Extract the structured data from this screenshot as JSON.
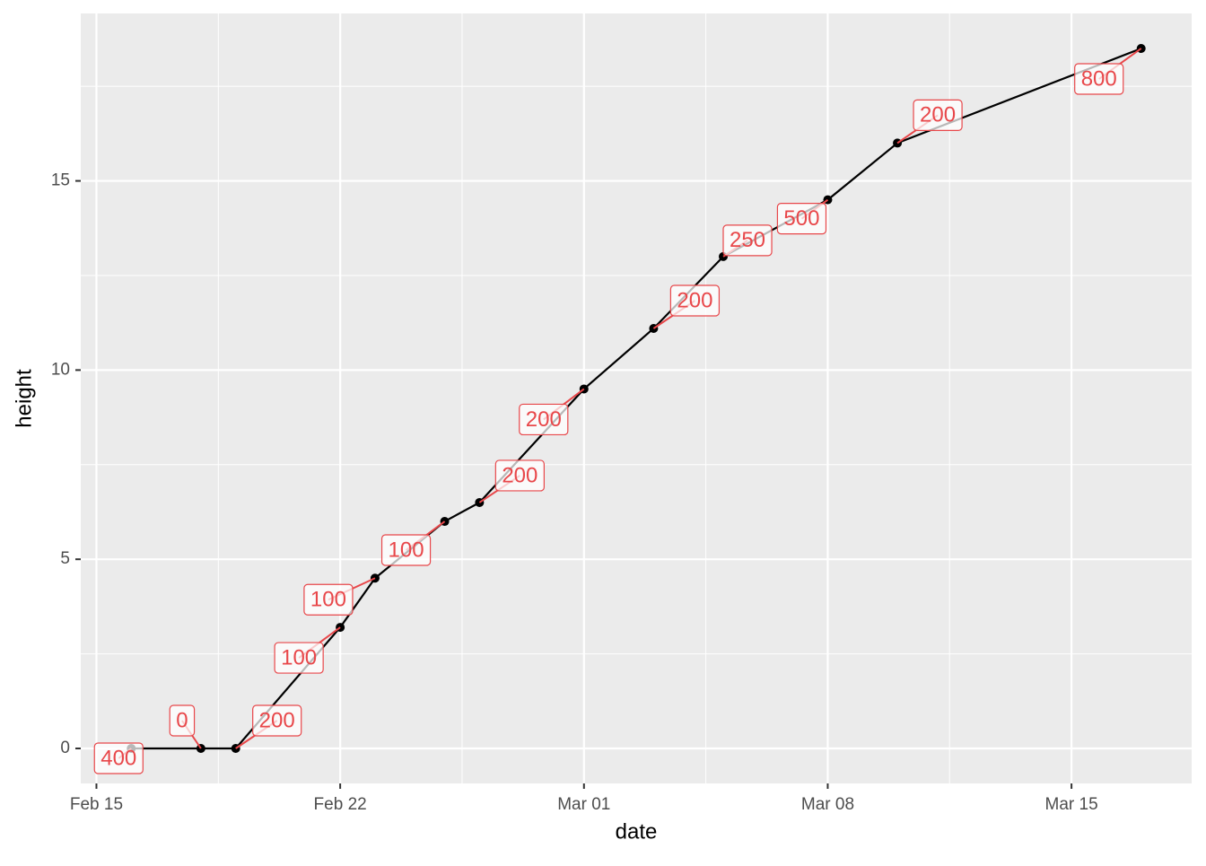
{
  "chart_data": {
    "type": "line",
    "x_label": "date",
    "y_label": "height",
    "x": [
      "Feb 16",
      "Feb 18",
      "Feb 19",
      "Feb 22",
      "Feb 23",
      "Feb 25",
      "Feb 26",
      "Mar 01",
      "Mar 03",
      "Mar 05",
      "Mar 08",
      "Mar 10",
      "Mar 17"
    ],
    "series": [
      {
        "name": "height",
        "color": "#000000",
        "values": [
          0,
          0,
          0,
          3.2,
          4.5,
          6.0,
          6.5,
          9.5,
          11.1,
          13.0,
          14.5,
          16.0,
          18.5
        ]
      }
    ],
    "point_labels": [
      400,
      0,
      200,
      100,
      100,
      100,
      200,
      200,
      200,
      250,
      500,
      200,
      800
    ],
    "label_color": "#E8474A",
    "xlim": [
      "Feb 16",
      "Mar 17"
    ],
    "xticks": [
      "Feb 15",
      "Feb 22",
      "Mar 01",
      "Mar 08",
      "Mar 15"
    ],
    "ylim": [
      -0.925,
      19.425
    ],
    "yticks": [
      0,
      5,
      10,
      15
    ],
    "grid": true
  }
}
